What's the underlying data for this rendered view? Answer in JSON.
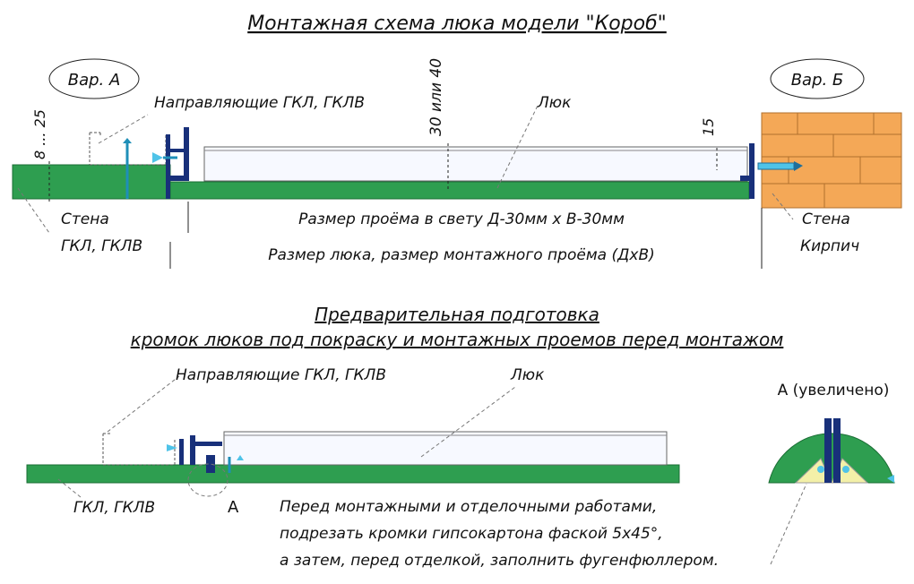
{
  "titles": {
    "main": "Монтажная схема люка модели \"Короб\"",
    "prep_line1": "Предварительная подготовка",
    "prep_line2": "кромок люков под покраску и монтажных проемов перед монтажом"
  },
  "top_diagram": {
    "variant_a": "Вар. А",
    "variant_b": "Вар. Б",
    "guides_label": "Направляющие ГКЛ, ГКЛВ",
    "hatch_label": "Люк",
    "dim_vertical_gap": "30 или 40",
    "dim_wall_range": "8 ... 25",
    "dim_15": "15",
    "opening_text": "Размер проёма в свету Д-30мм х В-30мм",
    "hatch_size_text": "Размер люка, размер монтажного проёма (ДхВ)",
    "wall_left_line1": "Стена",
    "wall_left_line2": "ГКЛ, ГКЛВ",
    "wall_right_line1": "Стена",
    "wall_right_line2": "Кирпич"
  },
  "bottom_diagram": {
    "guides_label": "Направляющие ГКЛ, ГКЛВ",
    "hatch_label": "Люк",
    "zoom_label": "А (увеличено)",
    "wall_label": "ГКЛ, ГКЛВ",
    "callout_letter": "А",
    "note_line1": "Перед монтажными и отделочными работами,",
    "note_line2": "подрезать кромки гипсокартона фаской 5х45°,",
    "note_line3": "а затем, перед отделкой, заполнить фугенфюллером."
  },
  "colors": {
    "drywall_green": "#2e9e50",
    "brick_orange": "#f4a857",
    "profile_blue": "#18307a",
    "filler_yellow": "#f3f0a8",
    "cap_cyan": "#4fc3e8"
  }
}
